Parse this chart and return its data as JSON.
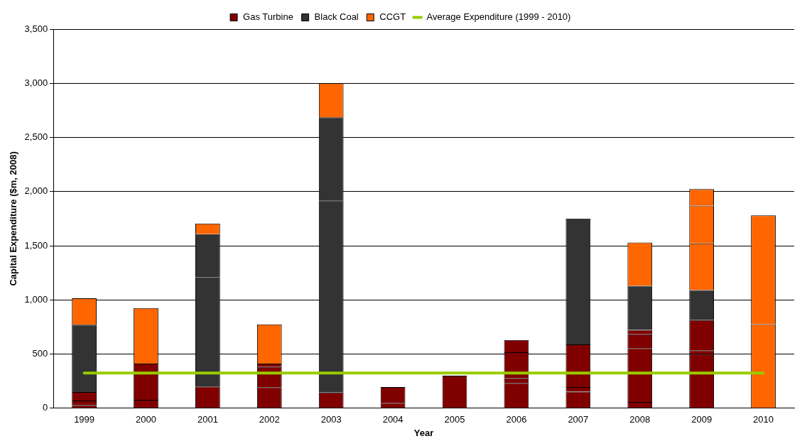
{
  "chart_data": {
    "type": "bar",
    "xlabel": "Year",
    "ylabel": "Capital Expenditure ($m, 2008)",
    "categories": [
      "1999",
      "2000",
      "2001",
      "2002",
      "2003",
      "2004",
      "2005",
      "2006",
      "2007",
      "2008",
      "2009",
      "2010"
    ],
    "stacked": true,
    "ylim": [
      0,
      3500
    ],
    "yticks": [
      {
        "value": 0,
        "label": "0"
      },
      {
        "value": 500,
        "label": "500"
      },
      {
        "value": 1000,
        "label": "1,000"
      },
      {
        "value": 1500,
        "label": "1,500"
      },
      {
        "value": 2000,
        "label": "2,000"
      },
      {
        "value": 2500,
        "label": "2,500"
      },
      {
        "value": 3000,
        "label": "3,000"
      },
      {
        "value": 3500,
        "label": "3,500"
      }
    ],
    "grid": "y",
    "legend": "top",
    "series": [
      {
        "name": "Gas Turbine",
        "color": "#800000",
        "values": [
          30,
          78,
          200,
          194,
          144,
          50,
          301,
          233,
          153,
          57,
          498,
          null
        ]
      },
      {
        "color": "#800000",
        "values": [
          40,
          334,
          null,
          187,
          null,
          146,
          null,
          46,
          43,
          498,
          36,
          null
        ]
      },
      {
        "color": "#800000",
        "values": [
          80,
          null,
          null,
          30,
          null,
          null,
          null,
          237,
          393,
          128,
          279,
          null
        ]
      },
      {
        "color": "#800000",
        "values": [
          null,
          null,
          null,
          null,
          null,
          null,
          null,
          114,
          null,
          41,
          null,
          null
        ]
      },
      {
        "name": "Black Coal",
        "color": "#333333",
        "values": [
          620,
          null,
          1007,
          null,
          1774,
          null,
          null,
          null,
          1162,
          406,
          278,
          null
        ]
      },
      {
        "color": "#333333",
        "values": [
          null,
          null,
          400,
          null,
          767,
          null,
          null,
          null,
          null,
          null,
          null,
          null
        ]
      },
      {
        "name": "CCGT",
        "color": "#ff6600",
        "values": [
          245,
          513,
          98,
          363,
          317,
          null,
          null,
          null,
          null,
          400,
          430,
          776
        ]
      },
      {
        "color": "#ff6600",
        "values": [
          null,
          null,
          null,
          null,
          null,
          null,
          null,
          null,
          null,
          null,
          349,
          1005
        ]
      },
      {
        "color": "#ff6600",
        "values": [
          null,
          null,
          null,
          null,
          null,
          null,
          null,
          null,
          null,
          null,
          153,
          null
        ]
      },
      {
        "name": "Average Expenditure (1999 - 2010)",
        "type": "line",
        "color": "#99cc00",
        "values": [
          325,
          325,
          325,
          325,
          325,
          325,
          325,
          325,
          325,
          325,
          325,
          325
        ]
      }
    ]
  }
}
